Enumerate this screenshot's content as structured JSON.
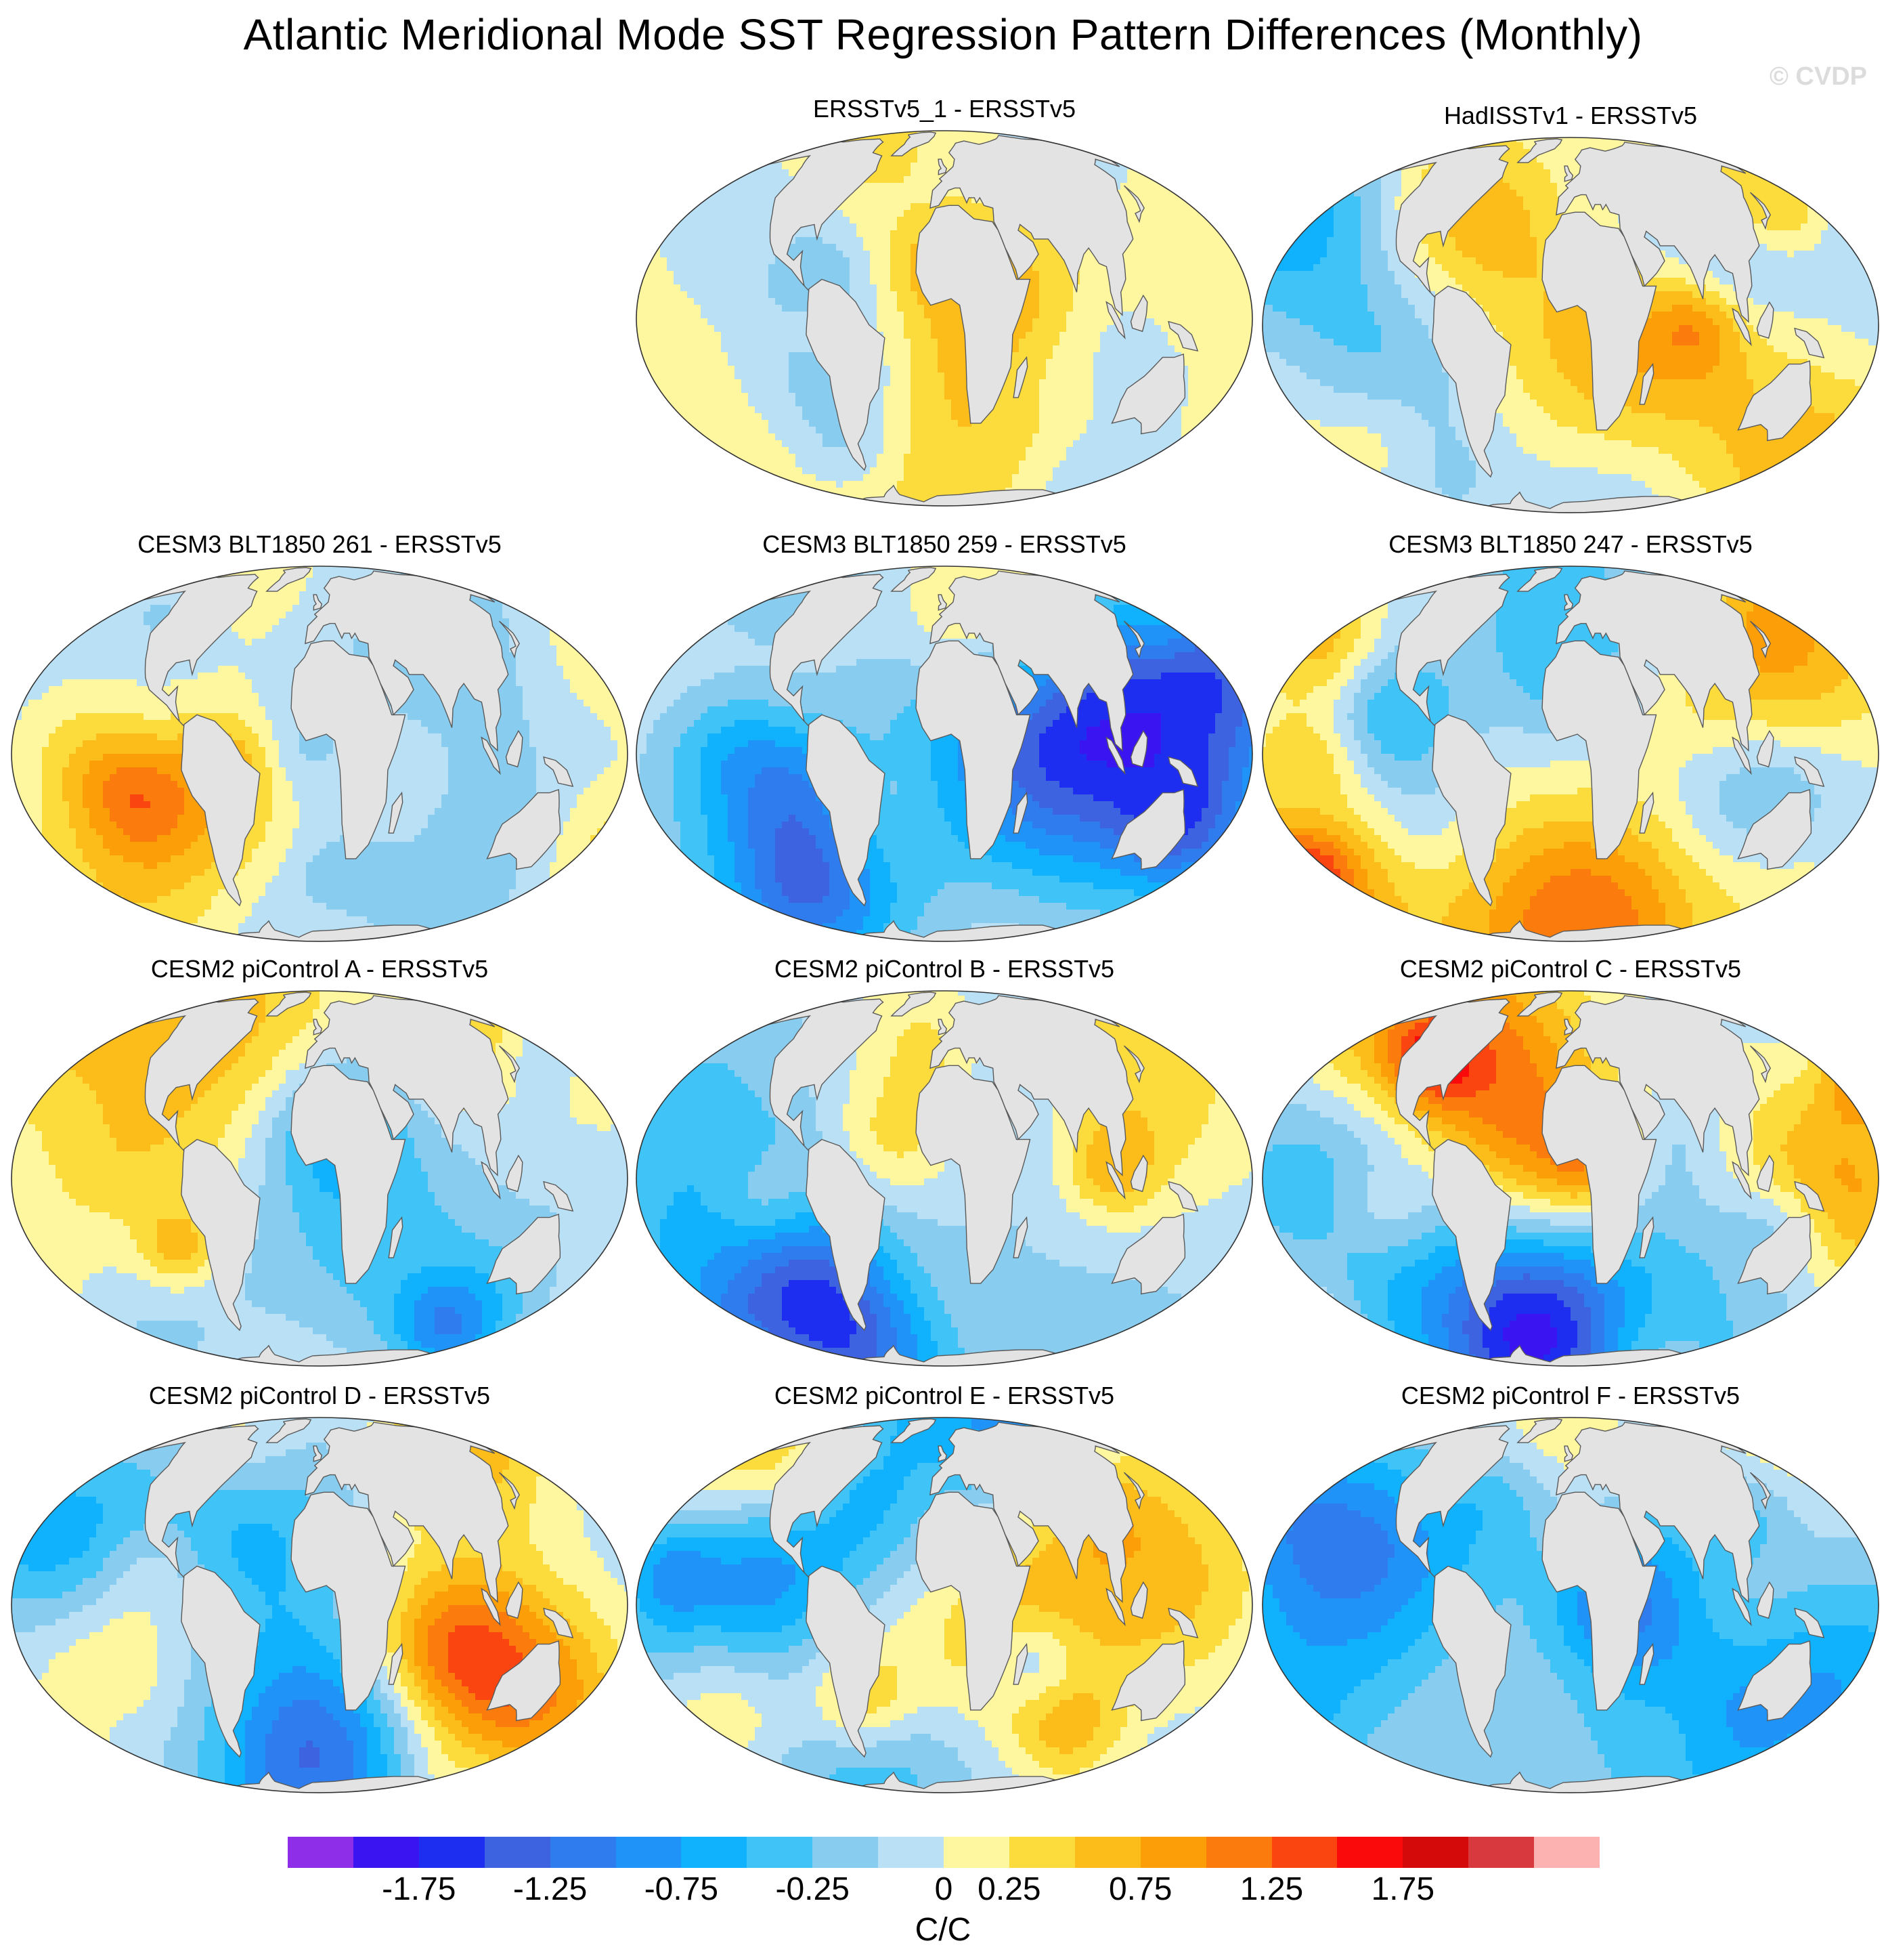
{
  "title": "Atlantic Meridional Mode SST Regression Pattern Differences (Monthly)",
  "watermark": "© CVDP",
  "units": "C/C",
  "colorbar": {
    "colors": [
      "#8e2ee8",
      "#3a15f2",
      "#1d2ef0",
      "#3d63e0",
      "#2f7cee",
      "#1f93f7",
      "#11b2fd",
      "#40c3f7",
      "#88cdef",
      "#b9e0f5",
      "#fff6a0",
      "#fcdc3c",
      "#fcbd1a",
      "#fc9e08",
      "#fb7c0c",
      "#fb4510",
      "#fa0a0a",
      "#d40a0a",
      "#d8393f",
      "#fdb2b2"
    ],
    "tick_labels": [
      "-1.75",
      "-1.25",
      "-0.75",
      "-0.25",
      "0",
      "0.25",
      "0.75",
      "1.25",
      "1.75"
    ],
    "tick_boundary_index": [
      2,
      4,
      6,
      8,
      10,
      11,
      13,
      15,
      17
    ]
  },
  "panels": [
    {
      "title": "ERSSTv5_1 - ERSSTv5",
      "seed": 11,
      "bias": 0.05,
      "amp": 0.45
    },
    {
      "title": "HadISSTv1 - ERSSTv5",
      "seed": 23,
      "bias": 0.0,
      "amp": 0.6
    },
    {
      "title": "CESM3 BLT1850 261 - ERSSTv5",
      "seed": 37,
      "bias": -0.15,
      "amp": 0.55
    },
    {
      "title": "CESM3 BLT1850 259 - ERSSTv5",
      "seed": 41,
      "bias": -0.1,
      "amp": 0.6
    },
    {
      "title": "CESM3 BLT1850 247 - ERSSTv5",
      "seed": 53,
      "bias": -0.1,
      "amp": 0.65
    },
    {
      "title": "CESM2 piControl A - ERSSTv5",
      "seed": 67,
      "bias": -0.05,
      "amp": 0.65
    },
    {
      "title": "CESM2 piControl B - ERSSTv5",
      "seed": 71,
      "bias": -0.25,
      "amp": 0.7
    },
    {
      "title": "CESM2 piControl C - ERSSTv5",
      "seed": 83,
      "bias": -0.2,
      "amp": 0.8
    },
    {
      "title": "CESM2 piControl D - ERSSTv5",
      "seed": 97,
      "bias": -0.25,
      "amp": 0.7
    },
    {
      "title": "CESM2 piControl E - ERSSTv5",
      "seed": 101,
      "bias": -0.3,
      "amp": 0.7
    },
    {
      "title": "CESM2 piControl F - ERSSTv5",
      "seed": 113,
      "bias": -0.2,
      "amp": 0.7
    }
  ]
}
